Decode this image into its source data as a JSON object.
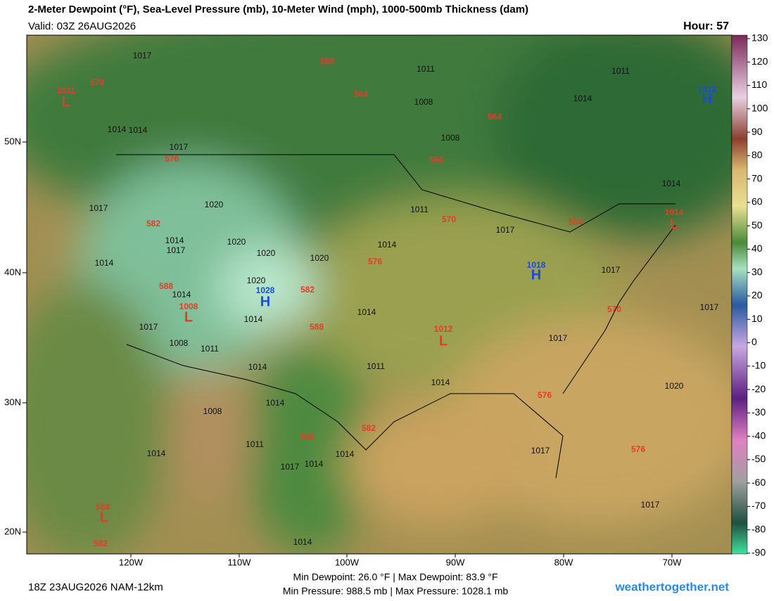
{
  "header": {
    "title": "2-Meter Dewpoint (°F), Sea-Level Pressure (mb), 10-Meter Wind (mph), 1000-500mb Thickness (dam)",
    "valid": "Valid: 03Z 26AUG2026",
    "hour": "Hour: 57"
  },
  "colorbar": {
    "labels": [
      "130",
      "120",
      "110",
      "100",
      "90",
      "80",
      "70",
      "60",
      "50",
      "40",
      "30",
      "20",
      "10",
      "0",
      "-10",
      "-20",
      "-30",
      "-40",
      "-50",
      "-60",
      "-70",
      "-80",
      "-90"
    ]
  },
  "axes": {
    "lat_labels": [
      "50N",
      "40N",
      "30N",
      "20N"
    ],
    "lon_labels": [
      "120W",
      "110W",
      "100W",
      "90W",
      "80W",
      "70W"
    ]
  },
  "map": {
    "labels": [
      "1017",
      "558",
      "1011",
      "1011",
      "1011",
      "L",
      "570",
      "564",
      "1008",
      "1014",
      "1012",
      "H",
      "564",
      "1014",
      "1014",
      "1008",
      "1017",
      "576",
      "564",
      "1014",
      "1017",
      "1020",
      "1011",
      "1014",
      "L",
      "582",
      "570",
      "1017",
      "564",
      "1014",
      "1017",
      "1020",
      "1014",
      "1020",
      "1020",
      "576",
      "1014",
      "1018",
      "H",
      "1017",
      "588",
      "1020",
      "1028",
      "H",
      "582",
      "1014",
      "1008",
      "L",
      "1014",
      "570",
      "1017",
      "1014",
      "588",
      "1012",
      "L",
      "1017",
      "1017",
      "1008",
      "1011",
      "1014",
      "1011",
      "1014",
      "1020",
      "576",
      "1014",
      "1008",
      "582",
      "588",
      "1011",
      "1014",
      "1014",
      "1017",
      "576",
      "1017",
      "1014",
      "1017",
      "588",
      "L",
      "582",
      "1014"
    ]
  },
  "footer": {
    "run": "18Z 23AUG2026 NAM-12km",
    "dewpoint": "Min Dewpoint:  26.0 °F | Max Dewpoint:  83.9 °F",
    "pressure": "Min Pressure: 988.5 mb | Max Pressure: 1028.1 mb",
    "site": "weathertogether.net"
  }
}
